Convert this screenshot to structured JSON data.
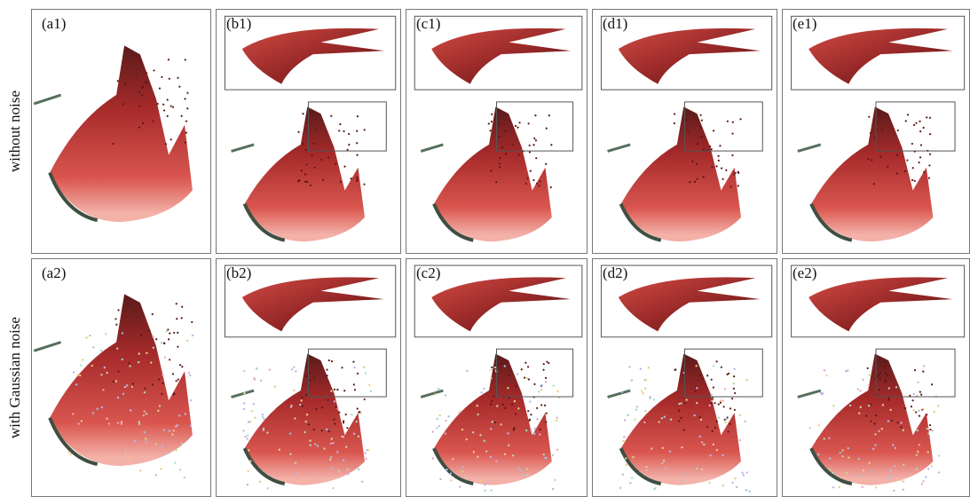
{
  "rows": [
    {
      "label": "without noise",
      "panels": [
        "(a1)",
        "(b1)",
        "(c1)",
        "(d1)",
        "(e1)"
      ]
    },
    {
      "label": "with Gaussian noise",
      "panels": [
        "(a2)",
        "(b2)",
        "(c2)",
        "(d2)",
        "(e2)"
      ]
    }
  ]
}
